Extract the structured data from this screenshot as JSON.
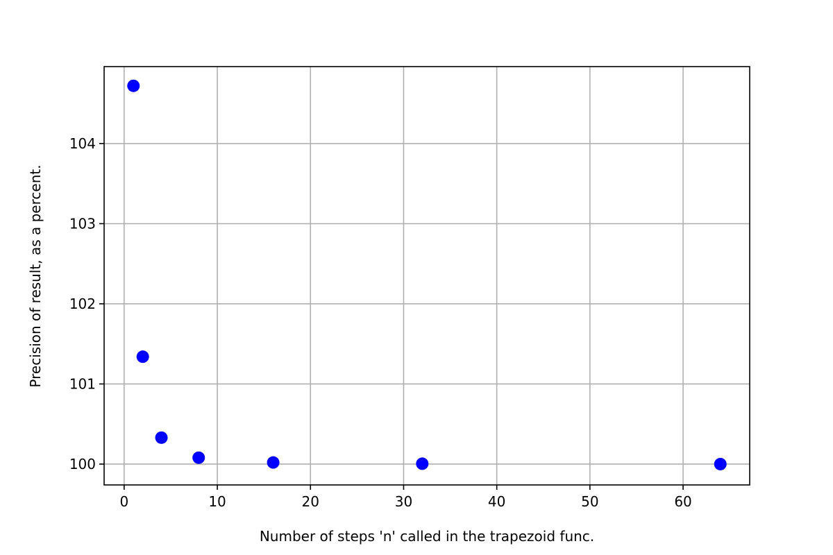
{
  "chart_data": {
    "type": "scatter",
    "title": "",
    "xlabel": "Number of steps 'n' called in the trapezoid func.",
    "ylabel": "Precision of result, as a percent.",
    "xlim": [
      -2.15,
      67.15
    ],
    "ylim": [
      99.74,
      104.96
    ],
    "xticks": [
      0,
      10,
      20,
      30,
      40,
      50,
      60
    ],
    "yticks": [
      100,
      101,
      102,
      103,
      104
    ],
    "grid": true,
    "legend": "none",
    "series": [
      {
        "color": "#0000ff",
        "x": [
          1,
          2,
          4,
          8,
          16,
          32,
          64
        ],
        "y": [
          104.72,
          101.34,
          100.33,
          100.08,
          100.02,
          100.005,
          100.0
        ]
      }
    ]
  }
}
